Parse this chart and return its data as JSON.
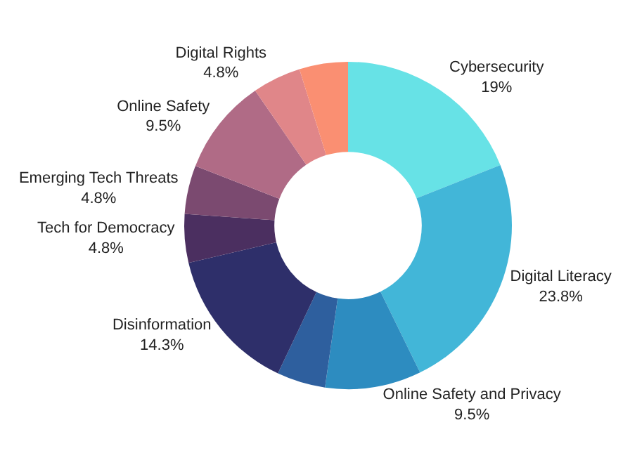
{
  "chart_data": {
    "type": "donut",
    "categories": [
      "Cybersecurity",
      "Digital Literacy",
      "Online Safety and Privacy",
      null,
      "Disinformation",
      "Tech for Democracy",
      "Emerging Tech Threats",
      "Online Safety",
      "Digital Rights",
      null
    ],
    "values": [
      19,
      23.8,
      9.5,
      4.8,
      14.3,
      4.8,
      4.8,
      9.5,
      4.8,
      4.8
    ],
    "value_labels": [
      "19%",
      "23.8%",
      "9.5%",
      null,
      "14.3%",
      "4.8%",
      "4.8%",
      "9.5%",
      "4.8%",
      null
    ],
    "colors": [
      "#67e2e6",
      "#42b6d8",
      "#2d8cc0",
      "#2e5f9e",
      "#2e2f6a",
      "#4b2f60",
      "#7b4a70",
      "#b06b86",
      "#e08689",
      "#fa8f72"
    ],
    "legend": false
  }
}
